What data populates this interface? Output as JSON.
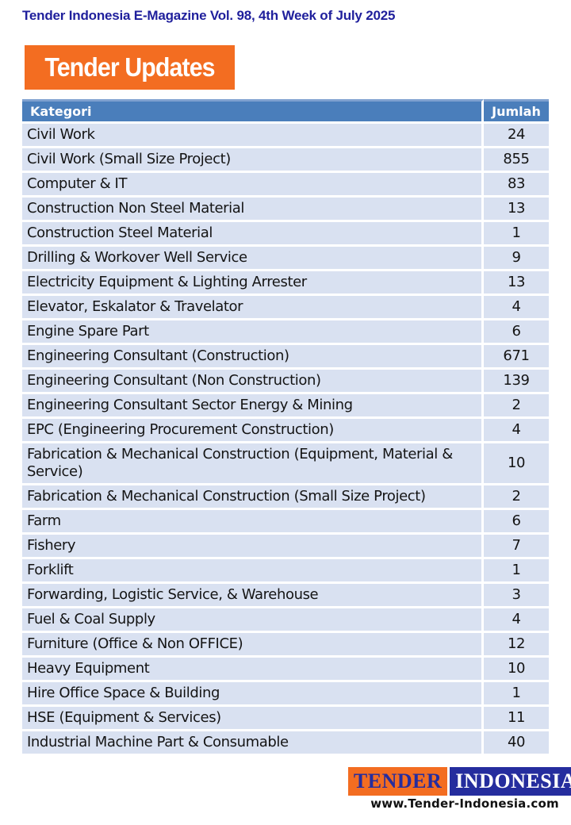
{
  "page": {
    "header_title": "Tender Indonesia E-Magazine Vol. 98, 4th Week of July 2025",
    "section_title": "Tender Updates"
  },
  "table": {
    "columns": [
      "Kategori",
      "Jumlah"
    ],
    "rows": [
      {
        "kategori": "Civil Work",
        "jumlah": "24"
      },
      {
        "kategori": "Civil Work (Small Size Project)",
        "jumlah": "855"
      },
      {
        "kategori": "Computer & IT",
        "jumlah": "83"
      },
      {
        "kategori": "Construction Non Steel Material",
        "jumlah": "13"
      },
      {
        "kategori": "Construction Steel Material",
        "jumlah": "1"
      },
      {
        "kategori": "Drilling & Workover Well Service",
        "jumlah": "9"
      },
      {
        "kategori": "Electricity Equipment & Lighting Arrester",
        "jumlah": "13"
      },
      {
        "kategori": "Elevator, Eskalator & Travelator",
        "jumlah": "4"
      },
      {
        "kategori": "Engine Spare Part",
        "jumlah": "6"
      },
      {
        "kategori": "Engineering Consultant (Construction)",
        "jumlah": "671"
      },
      {
        "kategori": "Engineering Consultant (Non Construction)",
        "jumlah": "139"
      },
      {
        "kategori": "Engineering Consultant Sector Energy & Mining",
        "jumlah": "2"
      },
      {
        "kategori": "EPC (Engineering Procurement Construction)",
        "jumlah": "4"
      },
      {
        "kategori": "Fabrication & Mechanical Construction (Equipment, Material & Service)",
        "jumlah": "10"
      },
      {
        "kategori": "Fabrication & Mechanical Construction (Small Size Project)",
        "jumlah": "2"
      },
      {
        "kategori": "Farm",
        "jumlah": "6"
      },
      {
        "kategori": "Fishery",
        "jumlah": "7"
      },
      {
        "kategori": "Forklift",
        "jumlah": "1"
      },
      {
        "kategori": "Forwarding, Logistic Service, & Warehouse",
        "jumlah": "3"
      },
      {
        "kategori": "Fuel & Coal Supply",
        "jumlah": "4"
      },
      {
        "kategori": "Furniture (Office & Non OFFICE)",
        "jumlah": "12"
      },
      {
        "kategori": "Heavy Equipment",
        "jumlah": "10"
      },
      {
        "kategori": "Hire Office Space & Building",
        "jumlah": "1"
      },
      {
        "kategori": "HSE (Equipment & Services)",
        "jumlah": "11"
      },
      {
        "kategori": "Industrial Machine Part & Consumable",
        "jumlah": "40"
      }
    ]
  },
  "footer": {
    "logo_left": "TENDER",
    "logo_right": "INDONESIA",
    "website": "www.Tender-Indonesia.com"
  },
  "colors": {
    "title_navy": "#1f1f9c",
    "banner_orange": "#f36d21",
    "table_header_blue": "#4a7ebb",
    "table_header_top_border": "#7fa1d0",
    "table_row_blue": "#d9e1f1",
    "logo_navy": "#252d9e",
    "logo_orange": "#f36d21"
  }
}
